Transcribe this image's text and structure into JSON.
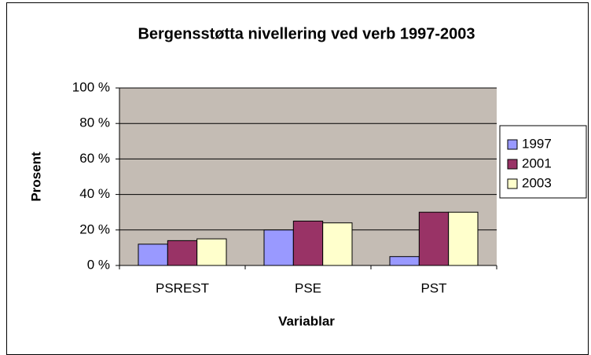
{
  "chart_data": {
    "type": "bar",
    "title": "Bergensstøtta nivellering ved verb 1997-2003",
    "x_label": "Variablar",
    "y_label": "Prosent",
    "categories": [
      "PSREST",
      "PSE",
      "PST"
    ],
    "series": [
      {
        "name": "1997",
        "color": "#9999ff",
        "values": [
          12,
          20,
          5
        ]
      },
      {
        "name": "2001",
        "color": "#993366",
        "values": [
          14,
          25,
          30
        ]
      },
      {
        "name": "2003",
        "color": "#ffffcc",
        "values": [
          15,
          24,
          30
        ]
      }
    ],
    "ylim": [
      0,
      100
    ],
    "yticks": [
      {
        "value": 0,
        "label": "0 %"
      },
      {
        "value": 20,
        "label": "20 %"
      },
      {
        "value": 40,
        "label": "40 %"
      },
      {
        "value": 60,
        "label": "60 %"
      },
      {
        "value": 80,
        "label": "80 %"
      },
      {
        "value": 100,
        "label": "100 %"
      }
    ],
    "grid": true,
    "legend": "right"
  }
}
